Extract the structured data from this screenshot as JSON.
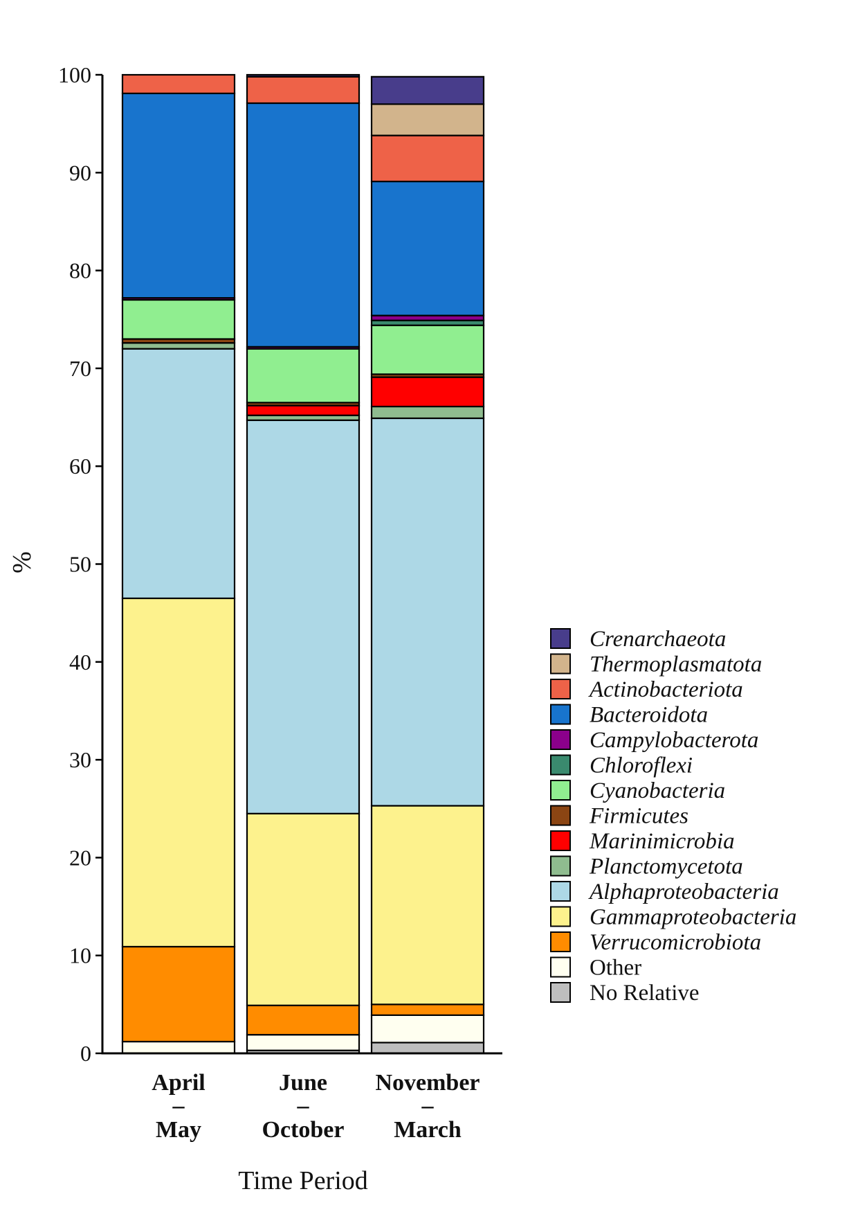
{
  "chart_data": {
    "type": "bar",
    "stacked": true,
    "xlabel": "Time Period",
    "ylabel": "%",
    "ylim": [
      0,
      100
    ],
    "yticks": [
      0,
      10,
      20,
      30,
      40,
      50,
      60,
      70,
      80,
      90,
      100
    ],
    "grid": false,
    "legend_position": "right",
    "categories": [
      {
        "line1": "April",
        "sep": "–",
        "line2": "May"
      },
      {
        "line1": "June",
        "sep": "–",
        "line2": "October"
      },
      {
        "line1": "November",
        "sep": "–",
        "line2": "March"
      }
    ],
    "series": [
      {
        "name": "No Relative",
        "color": "#BEBEBE",
        "italic": false,
        "values": [
          0.0,
          0.3,
          1.1
        ]
      },
      {
        "name": "Other",
        "color": "#FFFFF0",
        "italic": false,
        "values": [
          1.2,
          1.6,
          2.8
        ]
      },
      {
        "name": "Verrucomicrobiota",
        "color": "#FF8C00",
        "italic": true,
        "values": [
          9.7,
          3.0,
          1.1
        ]
      },
      {
        "name": "Gammaproteobacteria",
        "color": "#FDF28D",
        "italic": true,
        "values": [
          35.6,
          19.6,
          20.3
        ]
      },
      {
        "name": "Alphaproteobacteria",
        "color": "#ADD8E6",
        "italic": true,
        "values": [
          25.5,
          40.2,
          39.6
        ]
      },
      {
        "name": "Planctomycetota",
        "color": "#8FBC8F",
        "italic": true,
        "values": [
          0.6,
          0.5,
          1.2
        ]
      },
      {
        "name": "Marinimicrobia",
        "color": "#FF0000",
        "italic": true,
        "values": [
          0.0,
          1.0,
          3.0
        ]
      },
      {
        "name": "Firmicutes",
        "color": "#8B4513",
        "italic": true,
        "values": [
          0.4,
          0.3,
          0.3
        ]
      },
      {
        "name": "Cyanobacteria",
        "color": "#90EE90",
        "italic": true,
        "values": [
          4.0,
          5.5,
          5.0
        ]
      },
      {
        "name": "Chloroflexi",
        "color": "#3A8A6E",
        "italic": true,
        "values": [
          0.0,
          0.0,
          0.5
        ]
      },
      {
        "name": "Campylobacterota",
        "color": "#8B008B",
        "italic": true,
        "values": [
          0.2,
          0.2,
          0.5
        ]
      },
      {
        "name": "Bacteroidota",
        "color": "#1874CD",
        "italic": true,
        "values": [
          20.9,
          24.9,
          13.7
        ]
      },
      {
        "name": "Actinobacteriota",
        "color": "#EE6248",
        "italic": true,
        "values": [
          1.9,
          2.7,
          4.7
        ]
      },
      {
        "name": "Thermoplasmatota",
        "color": "#D2B48C",
        "italic": true,
        "values": [
          0.0,
          0.0,
          3.2
        ]
      },
      {
        "name": "Crenarchaeota",
        "color": "#483D8B",
        "italic": true,
        "values": [
          0.0,
          0.2,
          2.8
        ]
      }
    ],
    "legend_order": [
      "Crenarchaeota",
      "Thermoplasmatota",
      "Actinobacteriota",
      "Bacteroidota",
      "Campylobacterota",
      "Chloroflexi",
      "Cyanobacteria",
      "Firmicutes",
      "Marinimicrobia",
      "Planctomycetota",
      "Alphaproteobacteria",
      "Gammaproteobacteria",
      "Verrucomicrobiota",
      "Other",
      "No Relative"
    ]
  }
}
